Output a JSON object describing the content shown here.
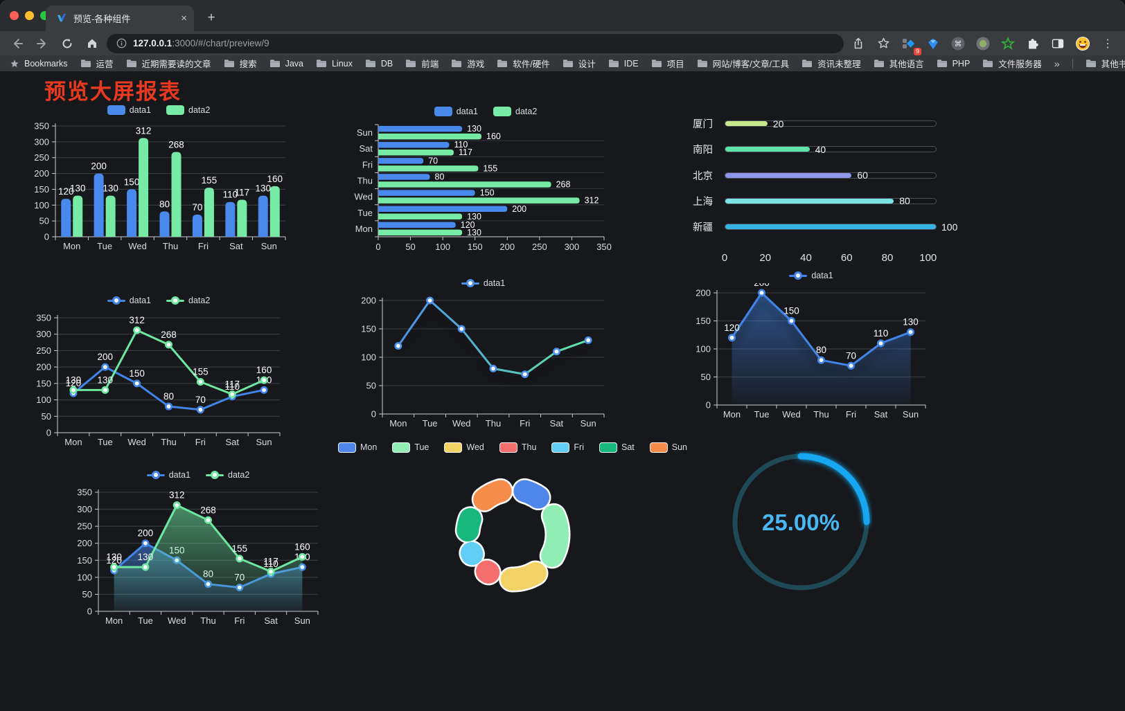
{
  "browser": {
    "tab_title": "预览-各种组件",
    "close_glyph": "×",
    "newtab_glyph": "+",
    "menu_glyph": "⋮",
    "command_glyph": "⌘",
    "url": {
      "host": "127.0.0.1",
      "rest": ":3000/#/chart/preview/9"
    },
    "extension_badge": "9",
    "bookmarks": {
      "first": "Bookmarks",
      "items": [
        "运营",
        "近期需要读的文章",
        "搜索",
        "Java",
        "Linux",
        "DB",
        "前端",
        "游戏",
        "软件/硬件",
        "设计",
        "IDE",
        "项目",
        "网站/博客/文章/工具",
        "资讯未整理",
        "其他语言",
        "PHP",
        "文件服务器"
      ],
      "overflow": "»",
      "other": "其他书签"
    }
  },
  "page": {
    "title": "预览大屏报表"
  },
  "chart_data": [
    {
      "type": "bar",
      "categories": [
        "Mon",
        "Tue",
        "Wed",
        "Thu",
        "Fri",
        "Sat",
        "Sun"
      ],
      "series": [
        {
          "name": "data1",
          "color": "#4a89ec",
          "values": [
            120,
            200,
            150,
            80,
            70,
            110,
            130
          ]
        },
        {
          "name": "data2",
          "color": "#77eba5",
          "values": [
            130,
            130,
            312,
            268,
            155,
            117,
            160
          ]
        }
      ],
      "ylim": [
        0,
        350
      ],
      "ystep": 50,
      "grid": true,
      "legend_position": "top"
    },
    {
      "type": "hbar",
      "categories": [
        "Mon",
        "Tue",
        "Wed",
        "Thu",
        "Fri",
        "Sat",
        "Sun"
      ],
      "series": [
        {
          "name": "data1",
          "color": "#4a89ec",
          "values": [
            120,
            200,
            150,
            80,
            70,
            110,
            130
          ]
        },
        {
          "name": "data2",
          "color": "#77eba5",
          "values": [
            130,
            130,
            312,
            268,
            155,
            117,
            160
          ]
        }
      ],
      "xlim": [
        0,
        350
      ],
      "xstep": 50,
      "legend_position": "top"
    },
    {
      "type": "progress-bars",
      "rows": [
        {
          "label": "厦门",
          "value": 20,
          "color": "#c7e88c"
        },
        {
          "label": "南阳",
          "value": 40,
          "color": "#5ee3ab"
        },
        {
          "label": "北京",
          "value": 60,
          "color": "#8d96e8"
        },
        {
          "label": "上海",
          "value": 80,
          "color": "#7ce4e4"
        },
        {
          "label": "新疆",
          "value": 100,
          "color": "#36b4e4"
        }
      ],
      "xlim": [
        0,
        100
      ],
      "xticks": [
        0,
        20,
        40,
        60,
        80,
        100
      ]
    },
    {
      "type": "line",
      "categories": [
        "Mon",
        "Tue",
        "Wed",
        "Thu",
        "Fri",
        "Sat",
        "Sun"
      ],
      "series": [
        {
          "name": "data1",
          "color": "#4285e8",
          "values": [
            120,
            200,
            150,
            80,
            70,
            110,
            130
          ]
        },
        {
          "name": "data2",
          "color": "#6ee7a0",
          "values": [
            130,
            130,
            312,
            268,
            155,
            117,
            160
          ]
        }
      ],
      "ylim": [
        0,
        350
      ],
      "ystep": 50,
      "labels": true,
      "legend_position": "top"
    },
    {
      "type": "line",
      "categories": [
        "Mon",
        "Tue",
        "Wed",
        "Thu",
        "Fri",
        "Sat",
        "Sun"
      ],
      "series": [
        {
          "name": "data1",
          "color": "#4a8fe8",
          "gradient": [
            "#4a8fe8",
            "#63e6a5"
          ],
          "values": [
            120,
            200,
            150,
            80,
            70,
            110,
            130
          ]
        }
      ],
      "ylim": [
        0,
        200
      ],
      "ystep": 50,
      "labels": false,
      "shadow": true,
      "legend_position": "top"
    },
    {
      "type": "line",
      "categories": [
        "Mon",
        "Tue",
        "Wed",
        "Thu",
        "Fri",
        "Sat",
        "Sun"
      ],
      "series": [
        {
          "name": "data1",
          "color": "#4285e8",
          "area": true,
          "values": [
            120,
            200,
            150,
            80,
            70,
            110,
            130
          ]
        }
      ],
      "ylim": [
        0,
        200
      ],
      "ystep": 50,
      "labels": true,
      "shadow": true,
      "legend_position": "top"
    },
    {
      "type": "line",
      "categories": [
        "Mon",
        "Tue",
        "Wed",
        "Thu",
        "Fri",
        "Sat",
        "Sun"
      ],
      "series": [
        {
          "name": "data1",
          "color": "#4285e8",
          "area": true,
          "values": [
            120,
            200,
            150,
            80,
            70,
            110,
            130
          ]
        },
        {
          "name": "data2",
          "color": "#6ee7a0",
          "area": true,
          "values": [
            130,
            130,
            312,
            268,
            155,
            117,
            160
          ]
        }
      ],
      "ylim": [
        0,
        350
      ],
      "ystep": 50,
      "labels": true,
      "legend_position": "top"
    },
    {
      "type": "donut",
      "categories": [
        "Mon",
        "Tue",
        "Wed",
        "Thu",
        "Fri",
        "Sat",
        "Sun"
      ],
      "values": [
        120,
        200,
        150,
        80,
        70,
        110,
        130
      ],
      "colors": [
        "#4e86ea",
        "#90eeb4",
        "#f2d264",
        "#f56e6e",
        "#62cdf5",
        "#17b77e",
        "#f58c4a"
      ],
      "legend_position": "top"
    },
    {
      "type": "gauge",
      "value_label": "25.00%",
      "percent": 25,
      "color": "#14a7f0",
      "track_color": "#1e4a57",
      "text_color": "#4ab7f5"
    }
  ]
}
